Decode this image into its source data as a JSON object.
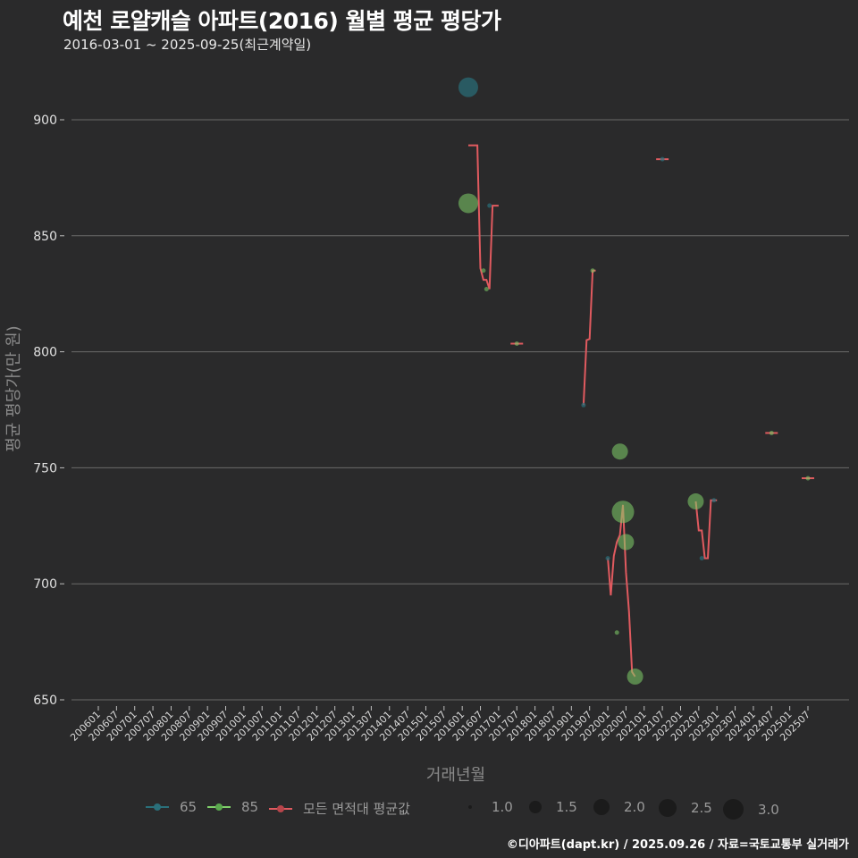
{
  "header": {
    "title": "예천 로얄캐슬 아파트(2016) 월별 평균 평당가",
    "subtitle": "2016-03-01 ~ 2025-09-25(최근계약일)"
  },
  "axes": {
    "ylabel": "평균 평당가(만 원)",
    "xlabel": "거래년월",
    "y_ticks": [
      "650",
      "700",
      "750",
      "800",
      "850",
      "900"
    ],
    "x_ticks": [
      "200601",
      "200607",
      "200701",
      "200707",
      "200801",
      "200807",
      "200901",
      "200907",
      "201001",
      "201007",
      "201101",
      "201107",
      "201201",
      "201207",
      "201301",
      "201307",
      "201401",
      "201407",
      "201501",
      "201507",
      "201601",
      "201607",
      "201701",
      "201707",
      "201801",
      "201807",
      "201901",
      "201907",
      "202001",
      "202007",
      "202101",
      "202107",
      "202201",
      "202207",
      "202301",
      "202307",
      "202401",
      "202407",
      "202501",
      "202507"
    ]
  },
  "legend": {
    "series": [
      {
        "label": "65",
        "color": "#2a6f7a"
      },
      {
        "label": "85",
        "color": "#7fcf6a"
      },
      {
        "label": "모든 면적대 평균값",
        "color": "#e05a5f"
      }
    ],
    "sizes": [
      "1.0",
      "1.5",
      "2.0",
      "2.5",
      "3.0"
    ]
  },
  "footer": {
    "credit": "©디아파트(dapt.kr) / 2025.09.26 / 자료=국토교통부 실거래가"
  },
  "colors": {
    "background": "#2a2a2b",
    "grid": "#6a6a6a",
    "series_65": "#2a6f7a",
    "series_85": "#7fcf6a",
    "average": "#e05a5f"
  },
  "chart_data": {
    "type": "scatter",
    "title": "예천 로얄캐슬 아파트(2016) 월별 평균 평당가",
    "subtitle": "2016-03-01 ~ 2025-09-25(최근계약일)",
    "xlabel": "거래년월",
    "ylabel": "평균 평당가(만 원)",
    "ylim": [
      645,
      925
    ],
    "y_ticks": [
      650,
      700,
      750,
      800,
      850,
      900
    ],
    "x_range": [
      "200601",
      "202507"
    ],
    "grid": true,
    "legend_position": "bottom",
    "size_legend": [
      1.0,
      1.5,
      2.0,
      2.5,
      3.0
    ],
    "series": [
      {
        "name": "65",
        "type": "scatter",
        "points": [
          {
            "x": "2016-03",
            "y": 914,
            "size": 2.0
          },
          {
            "x": "2016-10",
            "y": 863,
            "size": 1.0
          },
          {
            "x": "2019-05",
            "y": 777,
            "size": 1.0
          },
          {
            "x": "2020-01",
            "y": 711,
            "size": 1.0
          },
          {
            "x": "2021-07",
            "y": 883,
            "size": 1.0
          },
          {
            "x": "2022-08",
            "y": 711,
            "size": 1.0
          },
          {
            "x": "2022-12",
            "y": 736,
            "size": 1.0
          }
        ]
      },
      {
        "name": "85",
        "type": "scatter",
        "points": [
          {
            "x": "2016-03",
            "y": 864,
            "size": 2.0
          },
          {
            "x": "2016-08",
            "y": 835,
            "size": 1.0
          },
          {
            "x": "2016-09",
            "y": 827,
            "size": 1.0
          },
          {
            "x": "2017-07",
            "y": 803.5,
            "size": 1.0
          },
          {
            "x": "2019-08",
            "y": 835,
            "size": 1.0
          },
          {
            "x": "2020-04",
            "y": 679,
            "size": 1.0
          },
          {
            "x": "2020-05",
            "y": 757,
            "size": 1.5
          },
          {
            "x": "2020-06",
            "y": 731,
            "size": 2.5
          },
          {
            "x": "2020-07",
            "y": 718,
            "size": 1.5
          },
          {
            "x": "2020-10",
            "y": 660,
            "size": 1.5
          },
          {
            "x": "2022-06",
            "y": 735.5,
            "size": 1.5
          },
          {
            "x": "2024-07",
            "y": 765,
            "size": 1.0
          },
          {
            "x": "2025-07",
            "y": 745.5,
            "size": 1.0
          }
        ]
      },
      {
        "name": "모든 면적대 평균값",
        "type": "line",
        "segments": [
          [
            {
              "x": "2016-03",
              "y": 889
            },
            {
              "x": "2016-06",
              "y": 889
            },
            {
              "x": "2016-07",
              "y": 836
            },
            {
              "x": "2016-08",
              "y": 831
            },
            {
              "x": "2016-09",
              "y": 831
            },
            {
              "x": "2016-10",
              "y": 827
            },
            {
              "x": "2016-11",
              "y": 863
            },
            {
              "x": "2017-01",
              "y": 863
            }
          ],
          [
            {
              "x": "2017-07",
              "y": 803.5
            }
          ],
          [
            {
              "x": "2019-05",
              "y": 777
            },
            {
              "x": "2019-06",
              "y": 805
            },
            {
              "x": "2019-07",
              "y": 805.5
            },
            {
              "x": "2019-08",
              "y": 835
            },
            {
              "x": "2019-09",
              "y": 835
            }
          ],
          [
            {
              "x": "2020-01",
              "y": 711
            },
            {
              "x": "2020-02",
              "y": 695
            },
            {
              "x": "2020-03",
              "y": 712
            },
            {
              "x": "2020-04",
              "y": 718
            },
            {
              "x": "2020-05",
              "y": 721
            },
            {
              "x": "2020-06",
              "y": 734
            },
            {
              "x": "2020-07",
              "y": 705
            },
            {
              "x": "2020-08",
              "y": 688
            },
            {
              "x": "2020-09",
              "y": 662
            },
            {
              "x": "2020-10",
              "y": 660
            }
          ],
          [
            {
              "x": "2021-07",
              "y": 883
            }
          ],
          [
            {
              "x": "2022-06",
              "y": 735.5
            },
            {
              "x": "2022-07",
              "y": 723
            },
            {
              "x": "2022-08",
              "y": 723
            },
            {
              "x": "2022-09",
              "y": 711
            },
            {
              "x": "2022-10",
              "y": 711
            },
            {
              "x": "2022-11",
              "y": 736
            },
            {
              "x": "2023-01",
              "y": 736
            }
          ],
          [
            {
              "x": "2024-07",
              "y": 765
            }
          ],
          [
            {
              "x": "2025-07",
              "y": 745.5
            }
          ]
        ]
      }
    ]
  }
}
